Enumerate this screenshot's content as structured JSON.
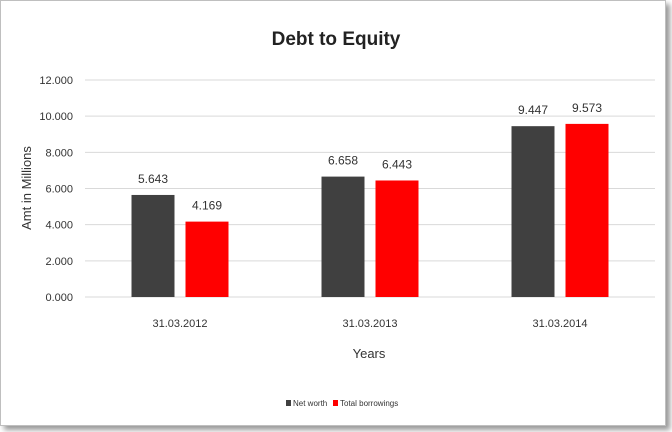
{
  "chart_data": {
    "type": "bar",
    "title": "Debt to Equity",
    "xlabel": "Years",
    "ylabel": "Amt in Millions",
    "categories": [
      "31.03.2012",
      "31.03.2013",
      "31.03.2014"
    ],
    "series": [
      {
        "name": "Net worth",
        "values": [
          5.643,
          6.658,
          9.447
        ],
        "color": "#404040"
      },
      {
        "name": "Total borrowings",
        "values": [
          4.169,
          6.443,
          9.573
        ],
        "color": "#ff0000"
      }
    ],
    "value_labels": [
      [
        "5.643",
        "6.658",
        "9.447"
      ],
      [
        "4.169",
        "6.443",
        "9.573"
      ]
    ],
    "yticks": [
      "0.000",
      "2.000",
      "4.000",
      "6.000",
      "8.000",
      "10.000",
      "12.000"
    ],
    "ylim": [
      0,
      12
    ],
    "grid": true,
    "legend": "bottom"
  }
}
